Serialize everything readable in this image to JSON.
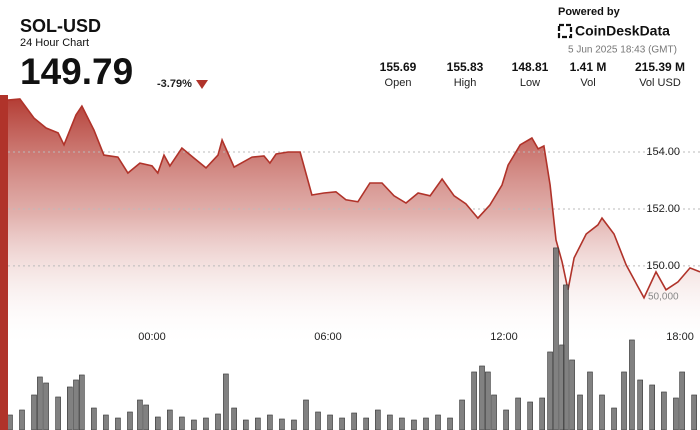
{
  "header": {
    "symbol": "SOL-USD",
    "subtitle": "24 Hour Chart",
    "price": 149.79,
    "change": "-3.79%",
    "powered_by": "Powered by",
    "brand": "CoinDeskData",
    "timestamp": "5 Jun 2025 18:43 (GMT)"
  },
  "stats": [
    {
      "value": "155.69",
      "label": "Open"
    },
    {
      "value": "155.83",
      "label": "High"
    },
    {
      "value": "148.81",
      "label": "Low"
    },
    {
      "value": "1.41 M",
      "label": "Vol"
    },
    {
      "value": "215.39 M",
      "label": "Vol USD"
    }
  ],
  "chart_data": [
    {
      "type": "area",
      "color": "#b0332a",
      "x": [
        -4.91,
        -4.5,
        -4.02,
        -3.61,
        -3.2,
        -3.0,
        -2.59,
        -2.39,
        -1.98,
        -1.64,
        -1.16,
        -0.82,
        -0.41,
        0.0,
        0.2,
        0.41,
        0.61,
        1.02,
        1.43,
        1.84,
        2.25,
        2.39,
        2.8,
        3.41,
        3.82,
        4.02,
        4.23,
        4.64,
        5.05,
        5.45,
        5.86,
        6.27,
        6.61,
        7.02,
        7.43,
        7.84,
        8.25,
        8.66,
        9.07,
        9.48,
        9.89,
        10.3,
        10.7,
        11.11,
        11.52,
        11.93,
        12.14,
        12.55,
        12.95,
        13.16,
        13.36,
        13.57,
        13.77,
        13.98,
        14.18,
        14.39,
        14.8,
        15.2,
        15.34,
        15.75,
        16.16,
        16.57,
        16.77,
        17.18,
        17.52,
        17.93,
        18.34,
        18.68
      ],
      "values": [
        155.82,
        155.86,
        155.19,
        154.84,
        154.67,
        154.25,
        155.3,
        155.61,
        154.77,
        153.89,
        153.82,
        153.26,
        153.61,
        153.51,
        153.26,
        153.89,
        153.51,
        154.14,
        153.79,
        153.44,
        153.89,
        154.42,
        153.47,
        153.82,
        153.86,
        153.61,
        153.93,
        154.0,
        154.0,
        152.49,
        152.56,
        152.6,
        152.32,
        152.25,
        152.91,
        152.91,
        152.46,
        152.21,
        152.56,
        152.46,
        153.05,
        152.46,
        152.18,
        151.68,
        152.14,
        152.84,
        153.54,
        154.25,
        154.49,
        154.11,
        154.21,
        152.84,
        150.91,
        150.14,
        149.16,
        150.28,
        151.12,
        151.44,
        151.68,
        151.12,
        150.04,
        149.26,
        148.88,
        149.79,
        149.16,
        149.44,
        149.93,
        149.79
      ],
      "xlim": [
        -5.18,
        18.68
      ],
      "xticks": [
        {
          "value": 0,
          "label": "00:00"
        },
        {
          "value": 6,
          "label": "06:00"
        },
        {
          "value": 12,
          "label": "12:00"
        },
        {
          "value": 18,
          "label": "18:00"
        }
      ],
      "ylim": [
        147.75,
        156
      ],
      "yticks": [
        {
          "value": 150,
          "label": "150.00"
        },
        {
          "value": 152,
          "label": "152.00"
        },
        {
          "value": 154,
          "label": "154.00"
        }
      ],
      "grid": true
    },
    {
      "type": "bar",
      "color": "#6b6b6b",
      "x": [
        -4.84,
        -4.43,
        -4.02,
        -3.82,
        -3.61,
        -3.2,
        -2.8,
        -2.59,
        -2.39,
        -1.98,
        -1.57,
        -1.16,
        -0.75,
        -0.41,
        -0.2,
        0.2,
        0.61,
        1.02,
        1.43,
        1.84,
        2.25,
        2.52,
        2.8,
        3.2,
        3.61,
        4.02,
        4.43,
        4.84,
        5.25,
        5.66,
        6.07,
        6.48,
        6.89,
        7.3,
        7.7,
        8.11,
        8.52,
        8.93,
        9.34,
        9.75,
        10.16,
        10.57,
        10.98,
        11.25,
        11.45,
        11.66,
        12.07,
        12.48,
        12.89,
        13.3,
        13.57,
        13.77,
        13.98,
        14.11,
        14.32,
        14.59,
        14.93,
        15.34,
        15.75,
        16.09,
        16.36,
        16.64,
        17.05,
        17.45,
        17.86,
        18.07,
        18.48
      ],
      "values": [
        5640,
        7520,
        13160,
        19930,
        17670,
        12410,
        16170,
        18800,
        20680,
        8270,
        5640,
        4510,
        6770,
        11280,
        9400,
        4890,
        7520,
        4890,
        3760,
        4510,
        6020,
        21060,
        8270,
        3760,
        4510,
        5640,
        4140,
        3760,
        11280,
        6770,
        5640,
        4510,
        6390,
        4510,
        7520,
        5640,
        4510,
        3760,
        4510,
        5640,
        4510,
        11280,
        21810,
        24060,
        21810,
        13160,
        7520,
        12030,
        10530,
        12030,
        29330,
        68430,
        31960,
        54520,
        26320,
        13160,
        21810,
        13160,
        8270,
        21810,
        33840,
        18800,
        16920,
        14290,
        12030,
        21810,
        13160
      ],
      "xlim": [
        -5.18,
        18.68
      ],
      "ylim": [
        0,
        115000
      ],
      "yticks": [
        {
          "value": 50000,
          "label": "50,000"
        }
      ]
    }
  ]
}
